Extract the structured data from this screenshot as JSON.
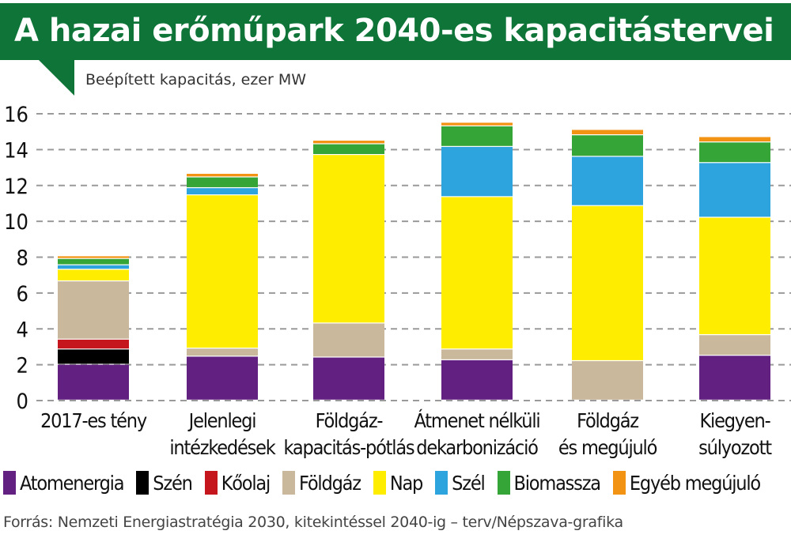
{
  "header": {
    "title": "A hazai erőműpark 2040-es kapacitástervei",
    "subtitle": "Beépített kapacitás, ezer MW",
    "brand_color": "#0e7438"
  },
  "chart_data": {
    "type": "bar",
    "stacked": true,
    "title": "A hazai erőműpark 2040-es kapacitástervei",
    "ylabel": "Beépített kapacitás, ezer MW",
    "xlabel": "",
    "ylim": [
      0,
      16
    ],
    "yticks": [
      0,
      2,
      4,
      6,
      8,
      10,
      12,
      14,
      16
    ],
    "grid": true,
    "legend_position": "bottom",
    "categories": [
      [
        "2017-es tény"
      ],
      [
        "Jelenlegi",
        "intézkedések"
      ],
      [
        "Földgáz-",
        "kapacitás-pótlás"
      ],
      [
        "Átmenet nélküli",
        "dekarbonizáció"
      ],
      [
        "Földgáz",
        "és megújuló"
      ],
      [
        "Kiegyen-",
        "súlyozott"
      ]
    ],
    "series": [
      {
        "name": "Atomenergia",
        "color": "#622181",
        "values": [
          2.0,
          2.45,
          2.4,
          2.25,
          0.0,
          2.5
        ]
      },
      {
        "name": "Szén",
        "color": "#000000",
        "values": [
          0.85,
          0.0,
          0.0,
          0.0,
          0.0,
          0.0
        ]
      },
      {
        "name": "Kőolaj",
        "color": "#c4161c",
        "values": [
          0.55,
          0.0,
          0.0,
          0.0,
          0.0,
          0.0
        ]
      },
      {
        "name": "Földgáz",
        "color": "#c9b89c",
        "values": [
          3.25,
          0.45,
          1.9,
          0.6,
          2.2,
          1.15
        ]
      },
      {
        "name": "Nap",
        "color": "#ffed00",
        "values": [
          0.65,
          8.55,
          9.4,
          8.5,
          8.65,
          6.55
        ]
      },
      {
        "name": "Szél",
        "color": "#2ea4de",
        "values": [
          0.25,
          0.4,
          0.0,
          2.8,
          2.75,
          3.05
        ]
      },
      {
        "name": "Biomassza",
        "color": "#36a537",
        "values": [
          0.35,
          0.6,
          0.6,
          1.15,
          1.2,
          1.15
        ]
      },
      {
        "name": "Egyéb megújuló",
        "color": "#f29313",
        "values": [
          0.15,
          0.2,
          0.2,
          0.2,
          0.3,
          0.3
        ]
      }
    ]
  },
  "legend": {
    "items": [
      "Atomenergia",
      "Szén",
      "Kőolaj",
      "Földgáz",
      "Nap",
      "Szél",
      "Biomassza",
      "Egyéb megújuló"
    ]
  },
  "footer": {
    "source": "Forrás: Nemzeti Energiastratégia 2030, kitekintéssel 2040-ig – terv/Népszava-grafika"
  }
}
